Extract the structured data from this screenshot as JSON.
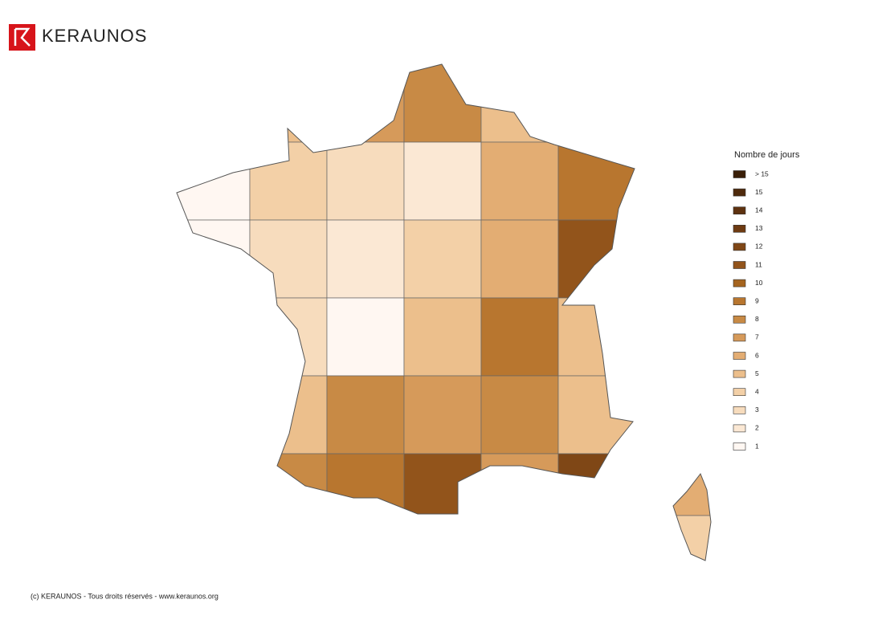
{
  "header": {
    "brand": "KERAUNOS"
  },
  "legend": {
    "title": "Nombre de jours",
    "items": [
      {
        "label": "> 15",
        "color": "#3a1f08"
      },
      {
        "label": 15,
        "color": "#4f2a0c"
      },
      {
        "label": 14,
        "color": "#5e3210"
      },
      {
        "label": 13,
        "color": "#6e3b12"
      },
      {
        "label": 12,
        "color": "#7f4716"
      },
      {
        "label": 11,
        "color": "#92541b"
      },
      {
        "label": 10,
        "color": "#a5641f"
      },
      {
        "label": 9,
        "color": "#b8762f"
      },
      {
        "label": 8,
        "color": "#c88a45"
      },
      {
        "label": 7,
        "color": "#d69a5a"
      },
      {
        "label": 6,
        "color": "#e3ad73"
      },
      {
        "label": 5,
        "color": "#ecbf8c"
      },
      {
        "label": 4,
        "color": "#f3d0a7"
      },
      {
        "label": 3,
        "color": "#f7dcbd"
      },
      {
        "label": 2,
        "color": "#fbe8d4"
      },
      {
        "label": 1,
        "color": "#fff7f2"
      }
    ]
  },
  "map": {
    "mainland": [
      [
        1,
        5,
        7,
        8,
        5,
        8
      ],
      [
        1,
        4,
        3,
        2,
        6,
        9
      ],
      [
        1,
        3,
        2,
        4,
        6,
        11
      ],
      [
        4,
        3,
        1,
        5,
        9,
        5
      ],
      [
        6,
        5,
        8,
        7,
        8,
        5
      ],
      [
        7,
        8,
        9,
        11,
        7,
        12
      ]
    ],
    "corsica": [
      6,
      4
    ]
  },
  "footer": {
    "text": "(c) KERAUNOS - Tous droits réservés - www.keraunos.org"
  }
}
